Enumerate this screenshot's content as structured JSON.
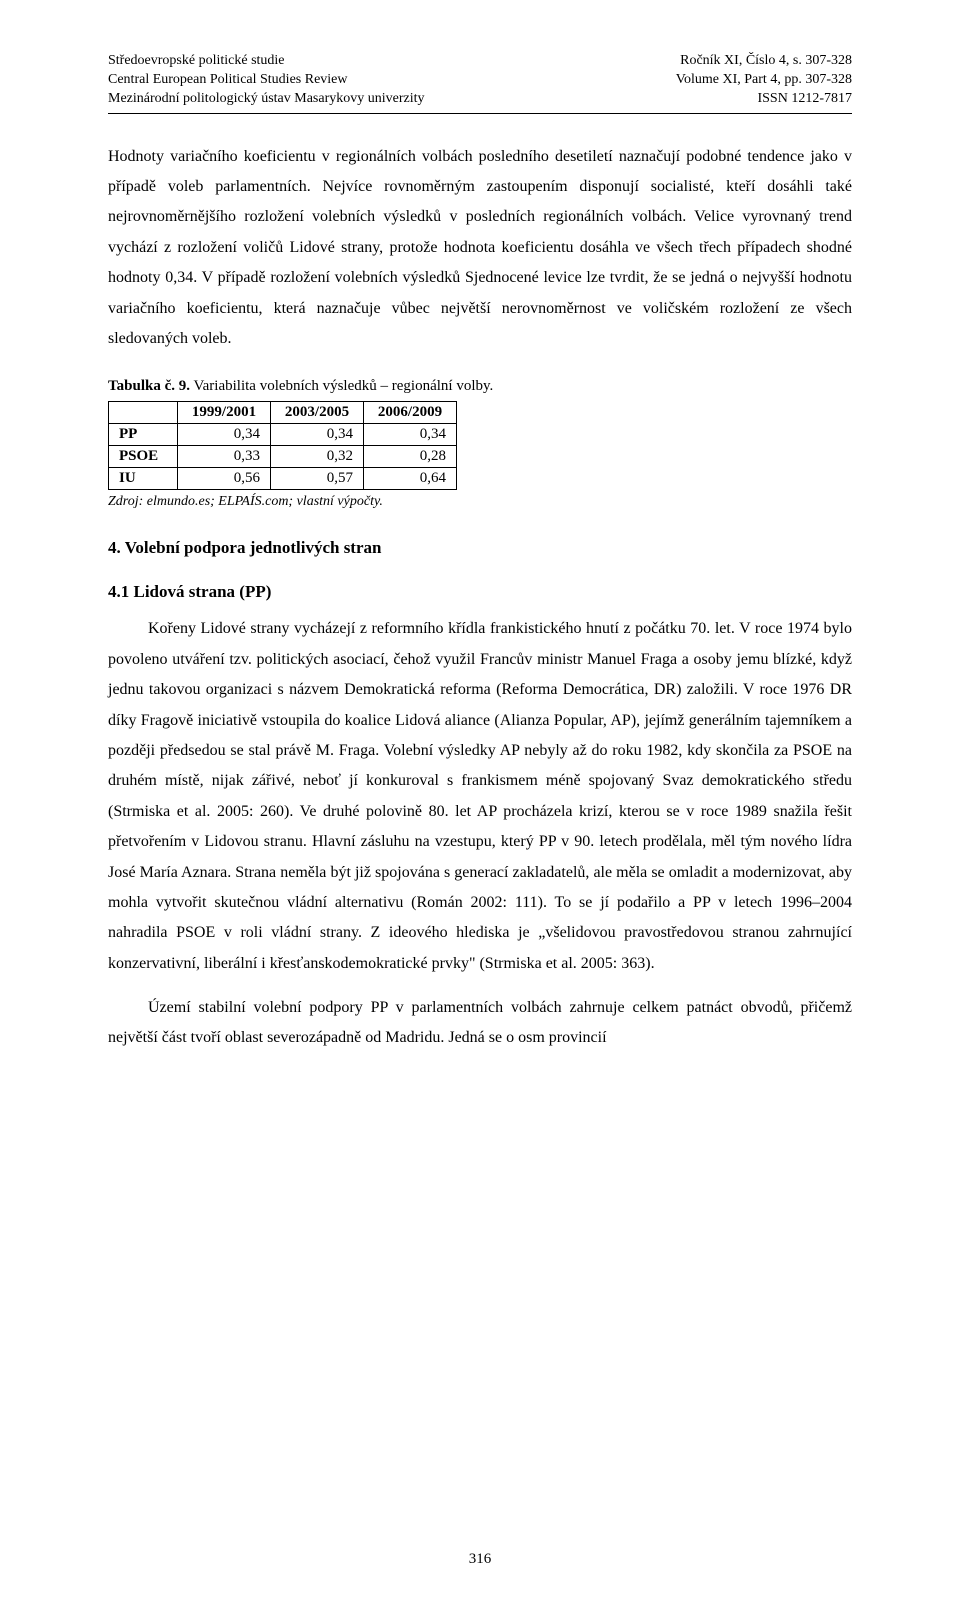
{
  "header": {
    "left": [
      "Středoevropské politické studie",
      "Central European Political Studies Review",
      "Mezinárodní politologický ústav Masarykovy univerzity"
    ],
    "right": [
      "Ročník XI, Číslo 4, s. 307-328",
      "Volume XI, Part 4, pp. 307-328",
      "ISSN 1212-7817"
    ]
  },
  "para1": "Hodnoty variačního koeficientu v regionálních volbách posledního desetiletí naznačují podobné tendence jako v případě voleb parlamentních. Nejvíce rovnoměrným zastoupením disponují socialisté, kteří dosáhli také nejrovnoměrnějšího rozložení volebních výsledků v posledních regionálních volbách. Velice vyrovnaný trend vychází z rozložení voličů Lidové strany, protože hodnota koeficientu dosáhla ve všech třech případech shodné hodnoty 0,34. V případě rozložení volebních výsledků Sjednocené levice lze tvrdit, že se jedná o nejvyšší hodnotu variačního koeficientu, která naznačuje vůbec největší nerovnoměrnost ve voličském rozložení ze všech sledovaných voleb.",
  "table": {
    "caption_bold": "Tabulka č. 9.",
    "caption_rest": " Variabilita volebních výsledků – regionální volby.",
    "columns": [
      "1999/2001",
      "2003/2005",
      "2006/2009"
    ],
    "rows": [
      {
        "label": "PP",
        "values": [
          "0,34",
          "0,34",
          "0,34"
        ]
      },
      {
        "label": "PSOE",
        "values": [
          "0,33",
          "0,32",
          "0,28"
        ]
      },
      {
        "label": "IU",
        "values": [
          "0,56",
          "0,57",
          "0,64"
        ]
      }
    ],
    "source": "Zdroj: elmundo.es; ELPAÍS.com; vlastní výpočty."
  },
  "h2": "4. Volební podpora jednotlivých stran",
  "h3": "4.1 Lidová strana (PP)",
  "para2": "Kořeny Lidové strany vycházejí z reformního křídla frankistického hnutí z počátku 70. let. V roce 1974 bylo povoleno utváření tzv. politických asociací, čehož využil Francův ministr Manuel Fraga a osoby jemu blízké, když jednu takovou organizaci s názvem Demokratická reforma (Reforma Democrática, DR) založili. V roce 1976 DR díky Fragově iniciativě vstoupila do koalice Lidová aliance (Alianza Popular, AP), jejímž generálním tajemníkem a později předsedou se stal právě M. Fraga. Volební výsledky AP nebyly až do roku 1982, kdy skončila za PSOE na druhém místě, nijak zářivé, neboť jí konkuroval s frankismem méně spojovaný Svaz demokratického středu (Strmiska et al. 2005: 260). Ve druhé polovině 80. let AP procházela krizí, kterou se v roce 1989 snažila řešit přetvořením v Lidovou stranu. Hlavní zásluhu na vzestupu, který PP v 90. letech prodělala, měl tým nového lídra José María Aznara. Strana neměla být již spojována s generací zakladatelů, ale měla se omladit a modernizovat, aby mohla vytvořit skutečnou vládní alternativu (Román 2002: 111). To se jí podařilo a PP v letech 1996–2004 nahradila PSOE v roli vládní strany. Z ideového hlediska je „všelidovou pravostředovou stranou zahrnující konzervativní, liberální i křesťanskodemokratické prvky\" (Strmiska et al. 2005: 363).",
  "para3": "Území stabilní volební podpory PP v parlamentních volbách zahrnuje celkem patnáct obvodů, přičemž největší část tvoří oblast severozápadně od Madridu. Jedná se o osm provincií",
  "page_number": "316"
}
